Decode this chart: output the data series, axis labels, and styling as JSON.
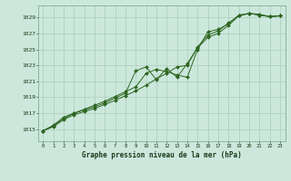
{
  "title": "Graphe pression niveau de la mer (hPa)",
  "bg_color": "#cce8dc",
  "grid_color": "#aaccbb",
  "line_color": "#2d6620",
  "marker_color": "#2d6620",
  "x_values": [
    0,
    1,
    2,
    3,
    4,
    5,
    6,
    7,
    8,
    9,
    10,
    11,
    12,
    13,
    14,
    15,
    16,
    17,
    18,
    19,
    20,
    21,
    22,
    23
  ],
  "series1": [
    1014.8,
    1015.3,
    1016.2,
    1016.8,
    1017.2,
    1017.6,
    1018.1,
    1018.6,
    1019.2,
    1019.8,
    1020.5,
    1021.3,
    1022.0,
    1022.8,
    1023.0,
    1025.3,
    1026.8,
    1027.3,
    1028.3,
    1029.2,
    1029.5,
    1029.3,
    1029.1,
    1029.2
  ],
  "series2": [
    1014.8,
    1015.4,
    1016.3,
    1017.0,
    1017.4,
    1017.8,
    1018.3,
    1018.9,
    1019.5,
    1022.3,
    1022.8,
    1021.2,
    1022.6,
    1021.5,
    1023.2,
    1025.2,
    1026.5,
    1027.0,
    1028.0,
    1029.2,
    1029.5,
    1029.3,
    1029.1,
    1029.2
  ],
  "series3": [
    1014.8,
    1015.5,
    1016.5,
    1017.0,
    1017.5,
    1018.0,
    1018.5,
    1019.1,
    1019.7,
    1020.3,
    1022.0,
    1022.5,
    1022.2,
    1021.8,
    1021.5,
    1025.0,
    1027.2,
    1027.5,
    1028.2,
    1029.3,
    1029.5,
    1029.4,
    1029.1,
    1029.2
  ],
  "ylim": [
    1013.5,
    1030.5
  ],
  "yticks": [
    1015,
    1017,
    1019,
    1021,
    1023,
    1025,
    1027,
    1029
  ],
  "xlim": [
    -0.5,
    23.5
  ],
  "xticks": [
    0,
    1,
    2,
    3,
    4,
    5,
    6,
    7,
    8,
    9,
    10,
    11,
    12,
    13,
    14,
    15,
    16,
    17,
    18,
    19,
    20,
    21,
    22,
    23
  ]
}
